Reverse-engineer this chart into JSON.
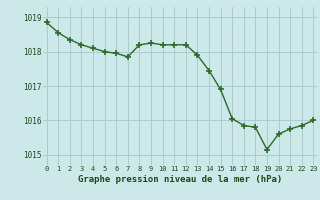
{
  "x": [
    0,
    1,
    2,
    3,
    4,
    5,
    6,
    7,
    8,
    9,
    10,
    11,
    12,
    13,
    14,
    15,
    16,
    17,
    18,
    19,
    20,
    21,
    22,
    23
  ],
  "y": [
    1018.85,
    1018.55,
    1018.35,
    1018.2,
    1018.1,
    1018.0,
    1017.95,
    1017.85,
    1018.2,
    1018.25,
    1018.2,
    1018.2,
    1018.2,
    1017.9,
    1017.45,
    1016.9,
    1016.05,
    1015.85,
    1015.8,
    1015.15,
    1015.6,
    1015.75,
    1015.85,
    1016.0
  ],
  "line_color": "#2d6a2d",
  "marker_color": "#2d6a2d",
  "bg_color": "#cce8e8",
  "grid_color": "#aacccc",
  "xlabel": "Graphe pression niveau de la mer (hPa)",
  "xlabel_color": "#1a4a1a",
  "tick_color": "#1a4a1a",
  "yticks": [
    1015,
    1016,
    1017,
    1018,
    1019
  ],
  "xticks": [
    0,
    1,
    2,
    3,
    4,
    5,
    6,
    7,
    8,
    9,
    10,
    11,
    12,
    13,
    14,
    15,
    16,
    17,
    18,
    19,
    20,
    21,
    22,
    23
  ],
  "ylim": [
    1014.7,
    1019.3
  ],
  "xlim": [
    -0.3,
    23.3
  ]
}
